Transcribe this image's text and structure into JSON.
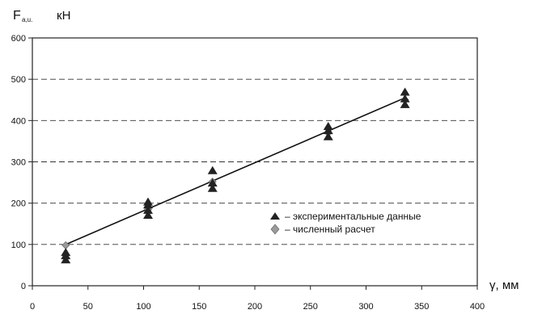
{
  "chart_data": {
    "type": "scatter",
    "x_ticks": [
      0,
      50,
      100,
      150,
      200,
      250,
      300,
      350,
      400
    ],
    "y_ticks": [
      0,
      100,
      200,
      300,
      400,
      500,
      600
    ],
    "xlim": [
      0,
      400
    ],
    "ylim": [
      0,
      600
    ],
    "grid": true,
    "grid_style": "dashed-horizontal",
    "xlabel": "γ, мм",
    "ylabel_main": "F",
    "ylabel_sub": "a,u.",
    "ylabel_unit": "кН",
    "legend_position": "lower-right",
    "series": [
      {
        "name": "– экспериментальные данные",
        "marker": "triangle",
        "color": "#222222",
        "points": [
          {
            "x": 30,
            "y": 62
          },
          {
            "x": 30,
            "y": 72
          },
          {
            "x": 30,
            "y": 80
          },
          {
            "x": 104,
            "y": 170
          },
          {
            "x": 104,
            "y": 182
          },
          {
            "x": 104,
            "y": 195
          },
          {
            "x": 104,
            "y": 202
          },
          {
            "x": 162,
            "y": 235
          },
          {
            "x": 162,
            "y": 248
          },
          {
            "x": 162,
            "y": 278
          },
          {
            "x": 266,
            "y": 360
          },
          {
            "x": 266,
            "y": 375
          },
          {
            "x": 266,
            "y": 385
          },
          {
            "x": 335,
            "y": 438
          },
          {
            "x": 335,
            "y": 452
          },
          {
            "x": 335,
            "y": 468
          }
        ]
      },
      {
        "name": "– численный расчет",
        "marker": "diamond",
        "color": "#9a9a9a",
        "points": [
          {
            "x": 30,
            "y": 98
          },
          {
            "x": 104,
            "y": 185
          },
          {
            "x": 162,
            "y": 252
          },
          {
            "x": 266,
            "y": 370
          },
          {
            "x": 335,
            "y": 450
          }
        ]
      }
    ],
    "fit_line": {
      "from": {
        "x": 30,
        "y": 100
      },
      "to": {
        "x": 335,
        "y": 455
      },
      "color": "#111111"
    }
  }
}
